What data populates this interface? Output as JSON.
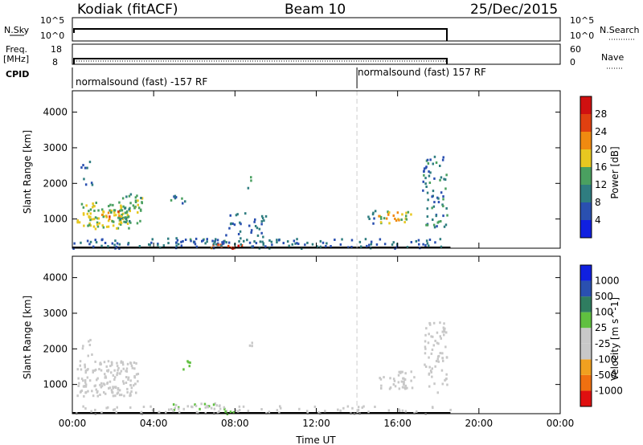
{
  "header": {
    "station": "Kodiak (fitACF)",
    "beam": "Beam 10",
    "date": "25/Dec/2015"
  },
  "side_labels": {
    "nsky": "N.Sky",
    "freq": "Freq.",
    "mhz": "[MHz]",
    "cpid": "CPID",
    "nsearch": "N.Search",
    "nave": "Nave",
    "nsky_ticks": [
      "10^5",
      "10^0"
    ],
    "nsearch_ticks": [
      "10^5",
      "10^0"
    ],
    "freq_ticks": [
      "18",
      "8"
    ],
    "nave_ticks": [
      "60",
      "0"
    ]
  },
  "cpid": {
    "segment1": "normalsound (fast) -157 RF",
    "segment2": "normalsound (fast) 157 RF",
    "switch_time_hours": 14.0
  },
  "colors": {
    "power": [
      "#1020e0",
      "#2a50b0",
      "#2f7d80",
      "#4aa060",
      "#e8c820",
      "#f08a10",
      "#e04010",
      "#d01010"
    ],
    "velocity": [
      "#e01010",
      "#f07010",
      "#f0a020",
      "#c8c8c8",
      "#c8c8c8",
      "#60c040",
      "#2f7d60",
      "#2a50b0",
      "#1020e0"
    ]
  },
  "chart_data": [
    {
      "type": "heatmap",
      "name": "power",
      "xlabel": "",
      "ylabel": "Slant Range [km]",
      "xlim": [
        0,
        24
      ],
      "ylim": [
        180,
        4600
      ],
      "yticks": [
        "4000",
        "3000",
        "2000",
        "1000"
      ],
      "colorbar": {
        "label": "Power [dB]",
        "ticks": [
          "28",
          "24",
          "20",
          "16",
          "12",
          "8",
          "4"
        ],
        "range": [
          0,
          32
        ]
      },
      "data_end_hours": 18.6,
      "regions": [
        {
          "t0": 0.2,
          "t1": 2.8,
          "r0": 750,
          "r1": 1500,
          "level": 16,
          "density": 0.9
        },
        {
          "t0": 2.3,
          "t1": 3.4,
          "r0": 900,
          "r1": 1800,
          "level": 14,
          "density": 0.8
        },
        {
          "t0": 1.3,
          "t1": 2.3,
          "r0": 1000,
          "r1": 1250,
          "level": 22,
          "density": 0.6
        },
        {
          "t0": 0.4,
          "t1": 1.0,
          "r0": 1800,
          "r1": 2700,
          "level": 8,
          "density": 0.3
        },
        {
          "t0": 5.0,
          "t1": 7.5,
          "r0": 300,
          "r1": 500,
          "level": 10,
          "density": 0.8
        },
        {
          "t0": 6.5,
          "t1": 8.3,
          "r0": 200,
          "r1": 320,
          "level": 26,
          "density": 0.9
        },
        {
          "t0": 7.5,
          "t1": 9.5,
          "r0": 300,
          "r1": 1200,
          "level": 8,
          "density": 0.4
        },
        {
          "t0": 8.6,
          "t1": 8.8,
          "r0": 1900,
          "r1": 2300,
          "level": 12,
          "density": 0.6
        },
        {
          "t0": 0.0,
          "t1": 18.6,
          "r0": 200,
          "r1": 480,
          "level": 8,
          "density": 0.45
        },
        {
          "t0": 15.0,
          "t1": 16.7,
          "r0": 900,
          "r1": 1250,
          "level": 18,
          "density": 0.85
        },
        {
          "t0": 17.2,
          "t1": 18.4,
          "r0": 800,
          "r1": 2800,
          "level": 10,
          "density": 0.5
        },
        {
          "t0": 14.2,
          "t1": 15.0,
          "r0": 900,
          "r1": 1300,
          "level": 8,
          "density": 0.4
        },
        {
          "t0": 4.8,
          "t1": 5.5,
          "r0": 1300,
          "r1": 1700,
          "level": 10,
          "density": 0.5
        }
      ]
    },
    {
      "type": "heatmap",
      "name": "velocity",
      "xlabel": "Time UT",
      "ylabel": "Slant Range [km]",
      "xlim": [
        0,
        24
      ],
      "ylim": [
        180,
        4600
      ],
      "xticks": [
        "00:00",
        "04:00",
        "08:00",
        "12:00",
        "16:00",
        "20:00",
        "00:00"
      ],
      "yticks": [
        "4000",
        "3000",
        "2000",
        "1000"
      ],
      "colorbar": {
        "label": "Velocity [m s^-1]",
        "ticks": [
          "1000",
          "500",
          "100",
          "25",
          "-25",
          "-100",
          "-500",
          "-1000"
        ],
        "range": [
          -1300,
          1300
        ]
      },
      "data_end_hours": 18.6,
      "regions": [
        {
          "t0": 0.2,
          "t1": 3.2,
          "r0": 700,
          "r1": 1700,
          "level": 0,
          "density": 0.9
        },
        {
          "t0": 1.5,
          "t1": 2.3,
          "r0": 800,
          "r1": 1100,
          "level": -200,
          "density": 0.5
        },
        {
          "t0": 4.7,
          "t1": 7.5,
          "r0": 300,
          "r1": 500,
          "level": 150,
          "density": 0.8
        },
        {
          "t0": 6.5,
          "t1": 8.3,
          "r0": 200,
          "r1": 320,
          "level": 150,
          "density": 0.8
        },
        {
          "t0": 0.0,
          "t1": 18.6,
          "r0": 200,
          "r1": 420,
          "level": -150,
          "density": 0.35
        },
        {
          "t0": 15.0,
          "t1": 16.7,
          "r0": 900,
          "r1": 1250,
          "level": -150,
          "density": 0.85
        },
        {
          "t0": 16.0,
          "t1": 16.8,
          "r0": 1000,
          "r1": 1400,
          "level": 0,
          "density": 0.6
        },
        {
          "t0": 17.2,
          "t1": 18.4,
          "r0": 800,
          "r1": 2800,
          "level": 0,
          "density": 0.5
        },
        {
          "t0": 8.6,
          "t1": 8.8,
          "r0": 1900,
          "r1": 2300,
          "level": -300,
          "density": 0.6
        },
        {
          "t0": 5.2,
          "t1": 5.8,
          "r0": 1400,
          "r1": 1700,
          "level": 300,
          "density": 0.5
        },
        {
          "t0": 0.4,
          "t1": 1.0,
          "r0": 1800,
          "r1": 2300,
          "level": -80,
          "density": 0.4
        }
      ]
    }
  ]
}
